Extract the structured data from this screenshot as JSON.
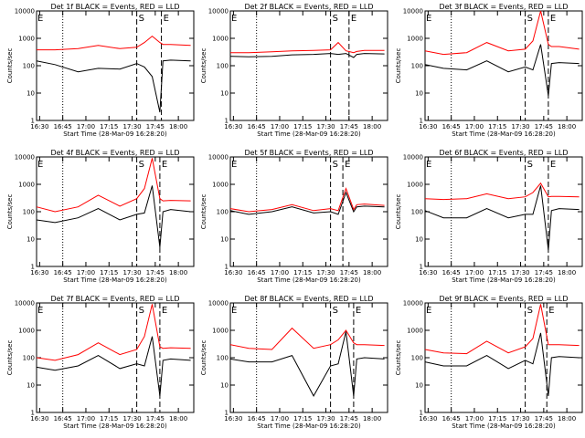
{
  "chart_data": [
    {
      "type": "line",
      "title": "Det 1f BLACK = Events, RED = LLD",
      "xlabel": "Start Time (28-Mar-09 16:28:20)",
      "ylabel": "Counts/sec",
      "x_ticks": [
        "16:30",
        "16:45",
        "17:00",
        "17:15",
        "17:30",
        "17:45",
        "18:00"
      ],
      "y_ticks": [
        "1",
        "10",
        "100",
        "1000",
        "10000"
      ],
      "ylim": [
        1,
        10000
      ],
      "yscale": "log",
      "markers": {
        "dotted": "16:45",
        "S": "17:33",
        "E": "17:49"
      },
      "series": [
        {
          "name": "Events",
          "color": "#000000",
          "x": [
            "16:28",
            "16:40",
            "16:55",
            "17:08",
            "17:22",
            "17:33",
            "17:38",
            "17:43",
            "17:48",
            "17:50",
            "17:55",
            "18:08"
          ],
          "values": [
            150,
            110,
            60,
            80,
            75,
            120,
            90,
            40,
            2,
            150,
            160,
            150
          ]
        },
        {
          "name": "LLD",
          "color": "#ff0000",
          "x": [
            "16:28",
            "16:40",
            "16:55",
            "17:08",
            "17:22",
            "17:33",
            "17:38",
            "17:43",
            "17:48",
            "17:50",
            "17:55",
            "18:08"
          ],
          "values": [
            380,
            380,
            420,
            550,
            420,
            470,
            700,
            1200,
            700,
            600,
            600,
            550
          ]
        }
      ]
    },
    {
      "type": "line",
      "title": "Det 2f BLACK = Events, RED = LLD",
      "xlabel": "Start Time (28-Mar-09 16:28:20)",
      "ylabel": "Counts/sec",
      "x_ticks": [
        "16:30",
        "16:45",
        "17:00",
        "17:15",
        "17:30",
        "17:45",
        "18:00"
      ],
      "y_ticks": [
        "1",
        "10",
        "100",
        "1000",
        "10000"
      ],
      "ylim": [
        1,
        10000
      ],
      "yscale": "log",
      "markers": {
        "dotted": "16:45",
        "S": "17:33",
        "E": "17:45"
      },
      "series": [
        {
          "name": "Events",
          "color": "#000000",
          "x": [
            "16:28",
            "16:40",
            "16:55",
            "17:08",
            "17:22",
            "17:33",
            "17:38",
            "17:43",
            "17:48",
            "17:50",
            "17:55",
            "18:08"
          ],
          "values": [
            220,
            210,
            220,
            250,
            260,
            280,
            260,
            280,
            200,
            260,
            280,
            270
          ]
        },
        {
          "name": "LLD",
          "color": "#ff0000",
          "x": [
            "16:28",
            "16:40",
            "16:55",
            "17:08",
            "17:22",
            "17:33",
            "17:38",
            "17:43",
            "17:48",
            "17:50",
            "17:55",
            "18:08"
          ],
          "values": [
            300,
            300,
            320,
            350,
            360,
            380,
            700,
            350,
            300,
            330,
            360,
            360
          ]
        }
      ]
    },
    {
      "type": "line",
      "title": "Det 3f BLACK = Events, RED = LLD",
      "xlabel": "Start Time (28-Mar-09 16:28:20)",
      "ylabel": "Counts/sec",
      "x_ticks": [
        "16:30",
        "16:45",
        "17:00",
        "17:15",
        "17:30",
        "17:45",
        "18:00"
      ],
      "y_ticks": [
        "1",
        "10",
        "100",
        "1000",
        "10000"
      ],
      "ylim": [
        1,
        10000
      ],
      "yscale": "log",
      "markers": {
        "dotted": "16:45",
        "S": "17:33",
        "E": "17:48"
      },
      "series": [
        {
          "name": "Events",
          "color": "#000000",
          "x": [
            "16:28",
            "16:40",
            "16:55",
            "17:08",
            "17:22",
            "17:33",
            "17:38",
            "17:43",
            "17:48",
            "17:50",
            "17:55",
            "18:08"
          ],
          "values": [
            110,
            80,
            70,
            150,
            60,
            90,
            70,
            600,
            8,
            120,
            130,
            120
          ]
        },
        {
          "name": "LLD",
          "color": "#ff0000",
          "x": [
            "16:28",
            "16:40",
            "16:55",
            "17:08",
            "17:22",
            "17:33",
            "17:38",
            "17:43",
            "17:48",
            "17:50",
            "17:55",
            "18:08"
          ],
          "values": [
            350,
            260,
            300,
            700,
            350,
            400,
            800,
            10000,
            600,
            500,
            500,
            400
          ]
        }
      ]
    },
    {
      "type": "line",
      "title": "Det 4f BLACK = Events, RED = LLD",
      "xlabel": "Start Time (28-Mar-09 16:28:20)",
      "ylabel": "Counts/sec",
      "x_ticks": [
        "16:30",
        "16:45",
        "17:00",
        "17:15",
        "17:30",
        "17:45",
        "18:00"
      ],
      "y_ticks": [
        "1",
        "10",
        "100",
        "1000",
        "10000"
      ],
      "ylim": [
        1,
        10000
      ],
      "yscale": "log",
      "markers": {
        "dotted": "16:45",
        "S": "17:33",
        "E": "17:48"
      },
      "series": [
        {
          "name": "Events",
          "color": "#000000",
          "x": [
            "16:28",
            "16:40",
            "16:55",
            "17:08",
            "17:22",
            "17:33",
            "17:38",
            "17:43",
            "17:48",
            "17:50",
            "17:55",
            "18:08"
          ],
          "values": [
            50,
            40,
            60,
            130,
            50,
            80,
            90,
            900,
            5,
            100,
            120,
            100
          ]
        },
        {
          "name": "LLD",
          "color": "#ff0000",
          "x": [
            "16:28",
            "16:40",
            "16:55",
            "17:08",
            "17:22",
            "17:33",
            "17:38",
            "17:43",
            "17:48",
            "17:50",
            "17:55",
            "18:08"
          ],
          "values": [
            150,
            100,
            150,
            400,
            160,
            300,
            700,
            9000,
            300,
            250,
            260,
            250
          ]
        }
      ]
    },
    {
      "type": "line",
      "title": "Det 5f BLACK = Events, RED = LLD",
      "xlabel": "Start Time (28-Mar-09 16:28:20)",
      "ylabel": "Counts/sec",
      "x_ticks": [
        "16:30",
        "16:45",
        "17:00",
        "17:15",
        "17:30",
        "17:45",
        "18:00"
      ],
      "y_ticks": [
        "1",
        "10",
        "100",
        "1000",
        "10000"
      ],
      "ylim": [
        1,
        10000
      ],
      "yscale": "log",
      "markers": {
        "dotted": "16:45",
        "S": "17:33",
        "E": "17:41"
      },
      "series": [
        {
          "name": "Events",
          "color": "#000000",
          "x": [
            "16:28",
            "16:40",
            "16:55",
            "17:08",
            "17:22",
            "17:33",
            "17:38",
            "17:43",
            "17:48",
            "17:50",
            "17:55",
            "18:08"
          ],
          "values": [
            110,
            80,
            100,
            150,
            90,
            100,
            80,
            500,
            100,
            150,
            160,
            150
          ]
        },
        {
          "name": "LLD",
          "color": "#ff0000",
          "x": [
            "16:28",
            "16:40",
            "16:55",
            "17:08",
            "17:22",
            "17:33",
            "17:38",
            "17:43",
            "17:48",
            "17:50",
            "17:55",
            "18:08"
          ],
          "values": [
            130,
            100,
            120,
            180,
            110,
            130,
            110,
            700,
            120,
            180,
            190,
            170
          ]
        }
      ]
    },
    {
      "type": "line",
      "title": "Det 6f BLACK = Events, RED = LLD",
      "xlabel": "Start Time (28-Mar-09 16:28:20)",
      "ylabel": "Counts/sec",
      "x_ticks": [
        "16:30",
        "16:45",
        "17:00",
        "17:15",
        "17:30",
        "17:45",
        "18:00"
      ],
      "y_ticks": [
        "1",
        "10",
        "100",
        "1000",
        "10000"
      ],
      "ylim": [
        1,
        10000
      ],
      "yscale": "log",
      "markers": {
        "dotted": "16:45",
        "S": "17:33",
        "E": "17:48"
      },
      "series": [
        {
          "name": "Events",
          "color": "#000000",
          "x": [
            "16:28",
            "16:40",
            "16:55",
            "17:08",
            "17:22",
            "17:33",
            "17:38",
            "17:43",
            "17:48",
            "17:50",
            "17:55",
            "18:08"
          ],
          "values": [
            110,
            60,
            60,
            130,
            60,
            80,
            80,
            900,
            4,
            110,
            130,
            120
          ]
        },
        {
          "name": "LLD",
          "color": "#ff0000",
          "x": [
            "16:28",
            "16:40",
            "16:55",
            "17:08",
            "17:22",
            "17:33",
            "17:38",
            "17:43",
            "17:48",
            "17:50",
            "17:55",
            "18:08"
          ],
          "values": [
            300,
            280,
            300,
            450,
            300,
            350,
            500,
            1100,
            350,
            360,
            360,
            350
          ]
        }
      ]
    },
    {
      "type": "line",
      "title": "Det 7f BLACK = Events, RED = LLD",
      "xlabel": "Start Time (28-Mar-09 16:28:20)",
      "ylabel": "Counts/sec",
      "x_ticks": [
        "16:30",
        "16:45",
        "17:00",
        "17:15",
        "17:30",
        "17:45",
        "18:00"
      ],
      "y_ticks": [
        "1",
        "10",
        "100",
        "1000",
        "10000"
      ],
      "ylim": [
        1,
        10000
      ],
      "yscale": "log",
      "markers": {
        "dotted": "16:45",
        "S": "17:33",
        "E": "17:48"
      },
      "series": [
        {
          "name": "Events",
          "color": "#000000",
          "x": [
            "16:28",
            "16:40",
            "16:55",
            "17:08",
            "17:22",
            "17:33",
            "17:38",
            "17:43",
            "17:48",
            "17:50",
            "17:55",
            "18:08"
          ],
          "values": [
            45,
            35,
            50,
            120,
            40,
            60,
            50,
            600,
            4,
            80,
            90,
            80
          ]
        },
        {
          "name": "LLD",
          "color": "#ff0000",
          "x": [
            "16:28",
            "16:40",
            "16:55",
            "17:08",
            "17:22",
            "17:33",
            "17:38",
            "17:43",
            "17:48",
            "17:50",
            "17:55",
            "18:08"
          ],
          "values": [
            100,
            80,
            130,
            350,
            130,
            200,
            600,
            9000,
            250,
            220,
            230,
            220
          ]
        }
      ]
    },
    {
      "type": "line",
      "title": "Det 8f BLACK = Events, RED = LLD",
      "xlabel": "Start Time (28-Mar-09 16:28:20)",
      "ylabel": "Counts/sec",
      "x_ticks": [
        "16:30",
        "16:45",
        "17:00",
        "17:15",
        "17:30",
        "17:45",
        "18:00"
      ],
      "y_ticks": [
        "1",
        "10",
        "100",
        "1000",
        "10000"
      ],
      "ylim": [
        1,
        10000
      ],
      "yscale": "log",
      "markers": {
        "dotted": "16:45",
        "S": "17:33",
        "E": "17:48"
      },
      "series": [
        {
          "name": "Events",
          "color": "#000000",
          "x": [
            "16:28",
            "16:40",
            "16:55",
            "17:08",
            "17:22",
            "17:33",
            "17:38",
            "17:43",
            "17:48",
            "17:50",
            "17:55",
            "18:08"
          ],
          "values": [
            90,
            70,
            70,
            120,
            4,
            50,
            60,
            900,
            4,
            90,
            100,
            90
          ]
        },
        {
          "name": "LLD",
          "color": "#ff0000",
          "x": [
            "16:28",
            "16:40",
            "16:55",
            "17:08",
            "17:22",
            "17:33",
            "17:38",
            "17:43",
            "17:48",
            "17:50",
            "17:55",
            "18:08"
          ],
          "values": [
            300,
            220,
            200,
            1200,
            220,
            300,
            450,
            1000,
            350,
            300,
            300,
            280
          ]
        }
      ]
    },
    {
      "type": "line",
      "title": "Det 9f BLACK = Events, RED = LLD",
      "xlabel": "Start Time (28-Mar-09 16:28:20)",
      "ylabel": "Counts/sec",
      "x_ticks": [
        "16:30",
        "16:45",
        "17:00",
        "17:15",
        "17:30",
        "17:45",
        "18:00"
      ],
      "y_ticks": [
        "1",
        "10",
        "100",
        "1000",
        "10000"
      ],
      "ylim": [
        1,
        10000
      ],
      "yscale": "log",
      "markers": {
        "dotted": "16:45",
        "S": "17:33",
        "E": "17:47"
      },
      "series": [
        {
          "name": "Events",
          "color": "#000000",
          "x": [
            "16:28",
            "16:40",
            "16:55",
            "17:08",
            "17:22",
            "17:33",
            "17:38",
            "17:43",
            "17:48",
            "17:50",
            "17:55",
            "18:08"
          ],
          "values": [
            70,
            50,
            50,
            120,
            40,
            80,
            60,
            800,
            4,
            100,
            110,
            100
          ]
        },
        {
          "name": "LLD",
          "color": "#ff0000",
          "x": [
            "16:28",
            "16:40",
            "16:55",
            "17:08",
            "17:22",
            "17:33",
            "17:38",
            "17:43",
            "17:48",
            "17:50",
            "17:55",
            "18:08"
          ],
          "values": [
            200,
            150,
            140,
            400,
            150,
            250,
            500,
            9000,
            300,
            300,
            300,
            280
          ]
        }
      ]
    }
  ]
}
